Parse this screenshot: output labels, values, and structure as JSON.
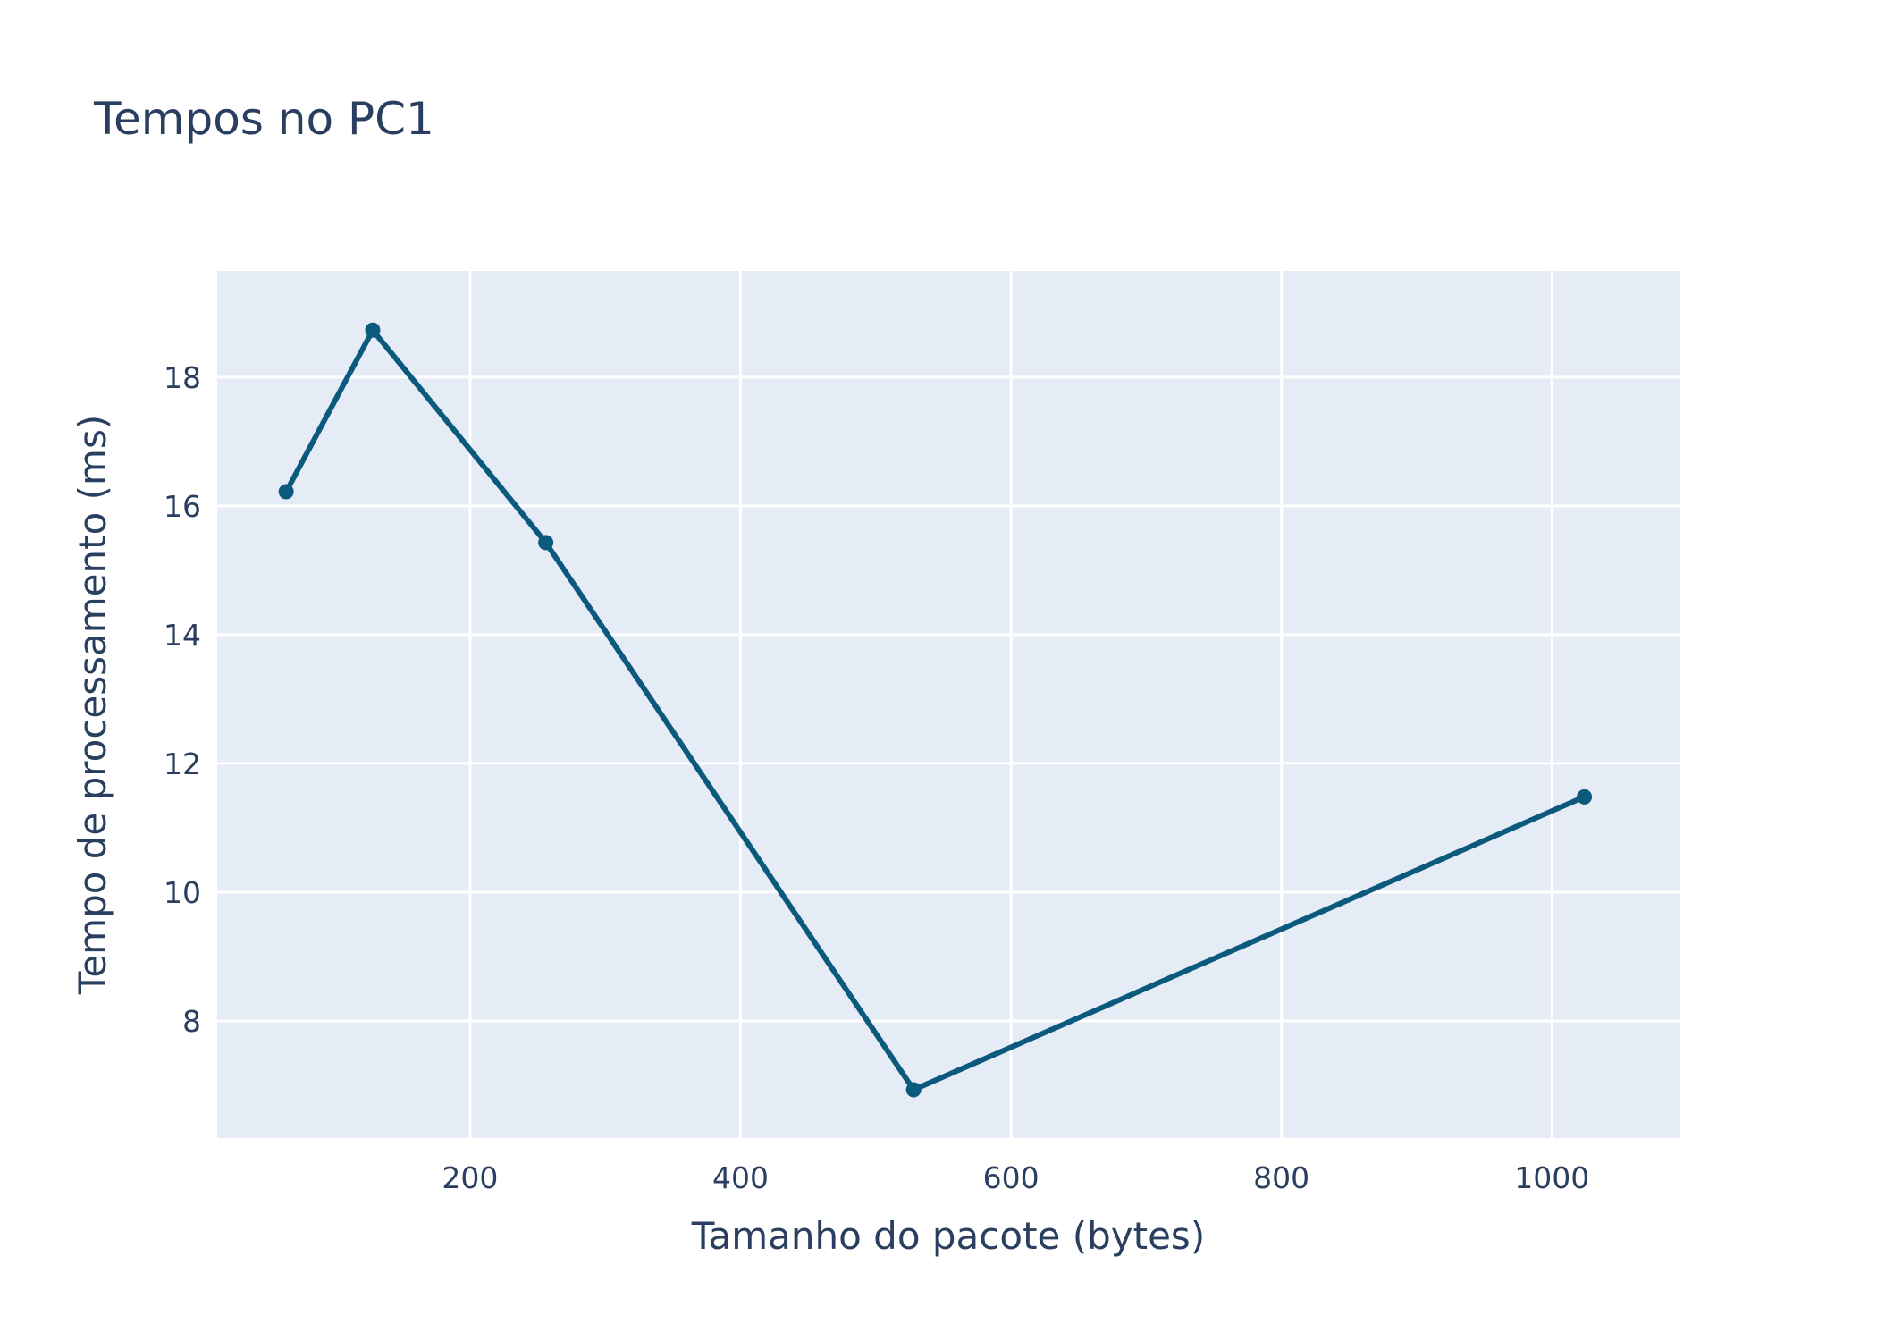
{
  "chart_data": {
    "type": "line",
    "title": "Tempos no PC1",
    "xlabel": "Tamanho do pacote (bytes)",
    "ylabel": "Tempo de processamento (ms)",
    "x": [
      64,
      128,
      256,
      528,
      1024
    ],
    "series": [
      {
        "values": [
          16.22,
          18.73,
          15.43,
          6.93,
          11.48
        ]
      }
    ],
    "xlim": [
      13,
      1095
    ],
    "ylim": [
      6.18,
      19.65
    ],
    "x_ticks": [
      200,
      400,
      600,
      800,
      1000
    ],
    "x_tick_labels": [
      "200",
      "400",
      "600",
      "800",
      "1000"
    ],
    "y_ticks": [
      8,
      10,
      12,
      14,
      16,
      18
    ],
    "y_tick_labels": [
      "8",
      "10",
      "12",
      "14",
      "16",
      "18"
    ],
    "grid": true,
    "legend": "none",
    "colors": {
      "line": "#0b5a7e",
      "plot_background": "#e5ecf6",
      "grid": "#ffffff",
      "text": "#2a3f5f"
    }
  }
}
